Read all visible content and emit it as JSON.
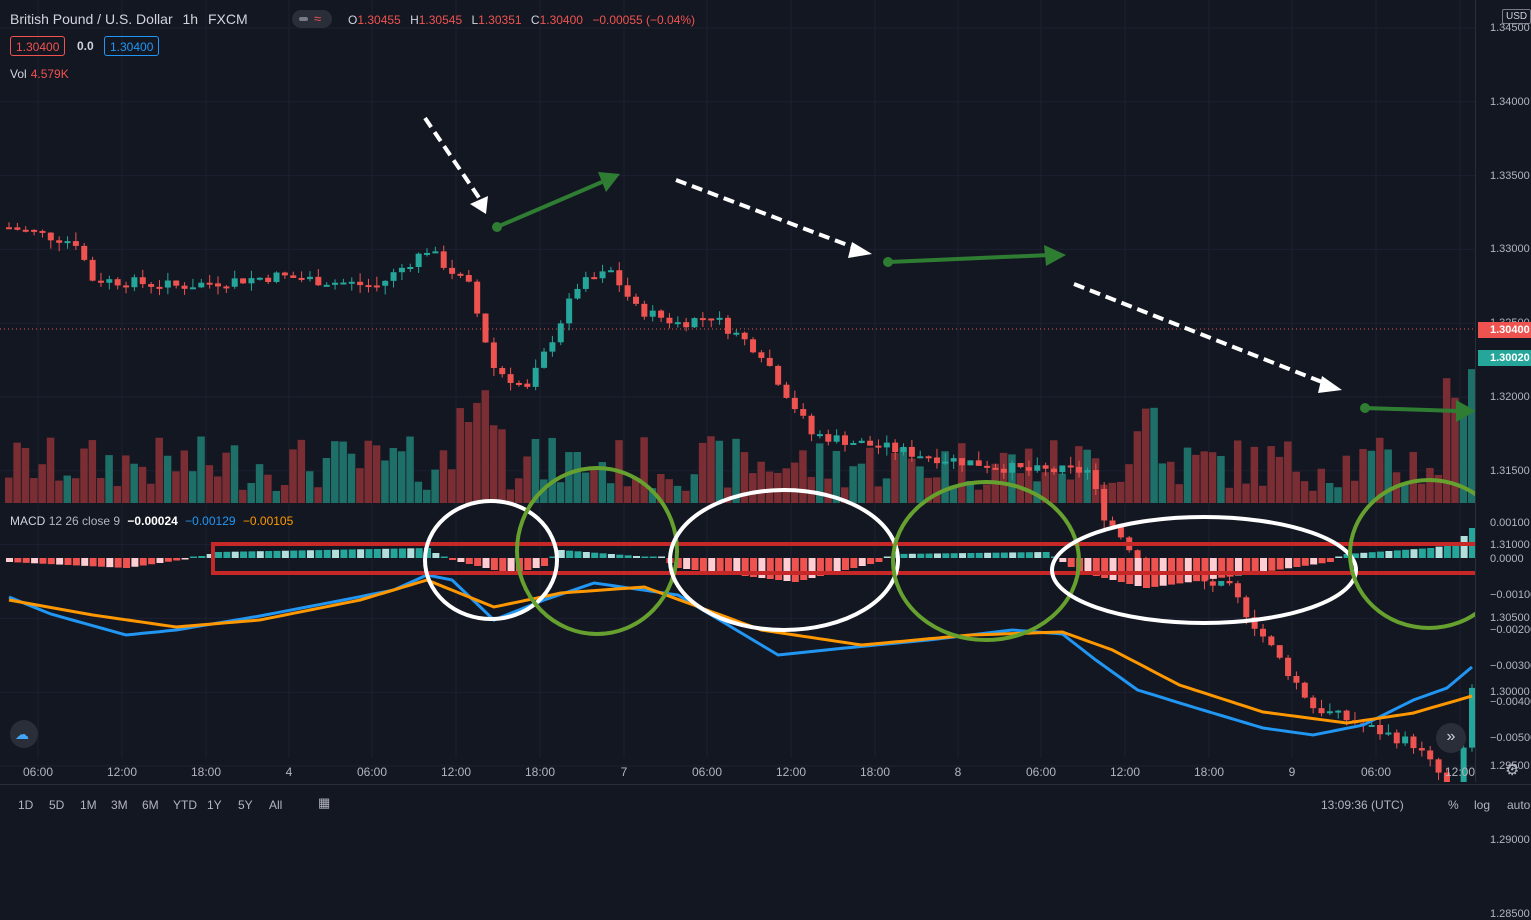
{
  "header": {
    "symbol": "British Pound / U.S. Dollar",
    "interval": "1h",
    "exchange": "FXCM",
    "ohlc": {
      "o_label": "O",
      "o": "1.30455",
      "h_label": "H",
      "h": "1.30545",
      "l_label": "L",
      "l": "1.30351",
      "c_label": "C",
      "c": "1.30400",
      "change": "−0.00055 (−0.04%)"
    },
    "sell_price": "1.30400",
    "spread": "0.0",
    "buy_price": "1.30400"
  },
  "volume": {
    "label": "Vol",
    "value": "4.579K"
  },
  "macd": {
    "label": "MACD",
    "params": "12 26 close 9",
    "hist": "−0.00024",
    "macd": "−0.00129",
    "signal": "−0.00105"
  },
  "price_axis": {
    "currency": "USD",
    "labels": [
      "1.34500",
      "1.34000",
      "1.33500",
      "1.33000",
      "1.32500",
      "1.32000",
      "1.31500",
      "1.31000",
      "1.30500",
      "1.30000",
      "1.29500",
      "1.29000",
      "1.28500"
    ],
    "current_tag": "1.30400",
    "close_tag": "1.30020"
  },
  "macd_axis": {
    "labels": [
      "0.00100",
      "0.0000",
      "−0.00100",
      "−0.00200",
      "−0.00300",
      "−0.00400",
      "−0.00500"
    ]
  },
  "time_axis": [
    "06:00",
    "12:00",
    "18:00",
    "4",
    "06:00",
    "12:00",
    "18:00",
    "7",
    "06:00",
    "12:00",
    "18:00",
    "8",
    "06:00",
    "12:00",
    "18:00",
    "9",
    "06:00",
    "12:00"
  ],
  "bottom_bar": {
    "ranges": [
      "1D",
      "5D",
      "1M",
      "3M",
      "6M",
      "YTD",
      "1Y",
      "5Y",
      "All"
    ],
    "clock": "13:09:36 (UTC)",
    "pct": "%",
    "log": "log",
    "auto": "auto"
  },
  "colors": {
    "up": "#26a69a",
    "down": "#ef5350",
    "macd_line": "#2196f3",
    "signal_line": "#ff9800",
    "background": "#131722"
  }
}
